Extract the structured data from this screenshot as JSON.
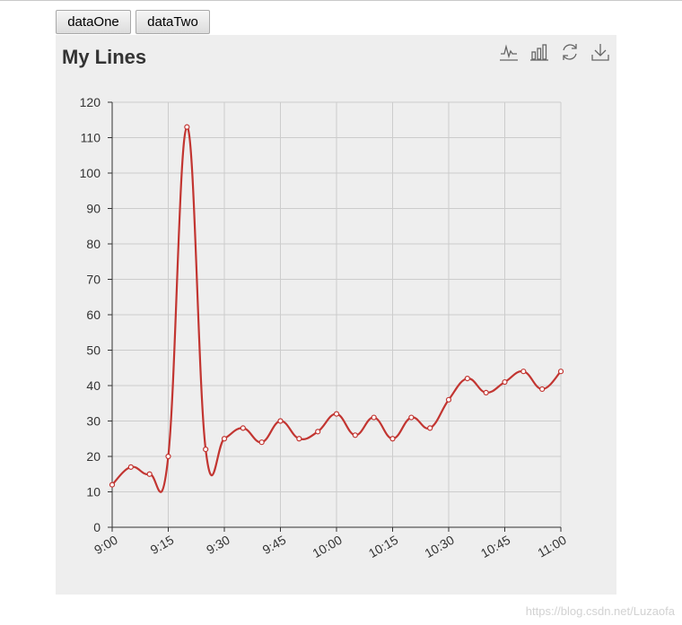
{
  "buttons": {
    "data_one": "dataOne",
    "data_two": "dataTwo"
  },
  "watermark": "https://blog.csdn.net/Luzaofa",
  "toolbox": [
    "line-chart-icon",
    "bar-chart-icon",
    "restore-icon",
    "download-icon"
  ],
  "colors": {
    "series": "#c23531",
    "grid": "#cccccc",
    "axis": "#333333",
    "panel": "#eeeeee"
  },
  "chart_data": {
    "type": "line",
    "title": "My Lines",
    "smooth": true,
    "x": [
      "9:00",
      "9:05",
      "9:10",
      "9:15",
      "9:20",
      "9:25",
      "9:30",
      "9:35",
      "9:40",
      "9:45",
      "9:50",
      "9:55",
      "10:00",
      "10:05",
      "10:10",
      "10:15",
      "10:20",
      "10:25",
      "10:30",
      "10:35",
      "10:40",
      "10:45",
      "10:50",
      "10:55",
      "11:00"
    ],
    "xticks": [
      "9:00",
      "9:15",
      "9:30",
      "9:45",
      "10:00",
      "10:15",
      "10:30",
      "10:45",
      "11:00"
    ],
    "series": [
      {
        "values": [
          12,
          17,
          15,
          20,
          113,
          22,
          25,
          28,
          24,
          30,
          25,
          27,
          32,
          26,
          31,
          25,
          31,
          28,
          36,
          42,
          38,
          41,
          44,
          39,
          44
        ]
      }
    ],
    "ylim": [
      0,
      120
    ],
    "yticks": [
      0,
      10,
      20,
      30,
      40,
      50,
      60,
      70,
      80,
      90,
      100,
      110,
      120
    ],
    "grid": true
  }
}
